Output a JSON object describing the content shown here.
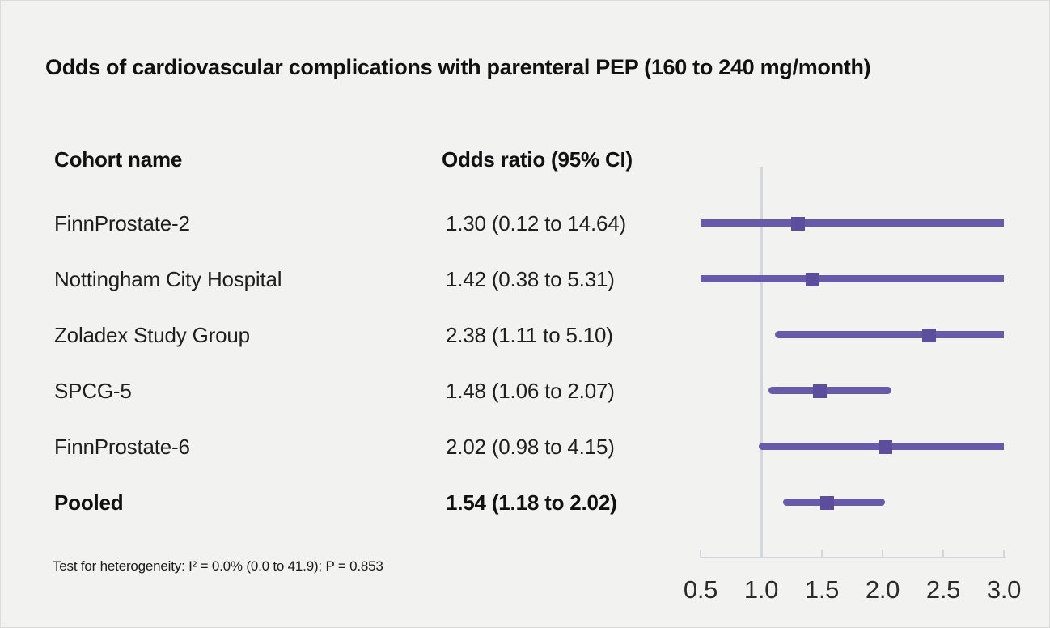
{
  "title": "Odds of cardiovascular complications with parenteral PEP (160 to 240 mg/month)",
  "table": {
    "cohort_header": "Cohort name",
    "or_header": "Odds ratio (95% CI)",
    "rows": [
      {
        "label": "FinnProstate-2",
        "or_text": "1.30 (0.12 to 14.64)",
        "bold": false
      },
      {
        "label": "Nottingham City Hospital",
        "or_text": "1.42 (0.38 to 5.31)",
        "bold": false
      },
      {
        "label": "Zoladex Study Group",
        "or_text": "2.38 (1.11 to 5.10)",
        "bold": false
      },
      {
        "label": "SPCG-5",
        "or_text": "1.48 (1.06 to 2.07)",
        "bold": false
      },
      {
        "label": "FinnProstate-6",
        "or_text": "2.02 (0.98 to 4.15)",
        "bold": false
      },
      {
        "label": "Pooled",
        "or_text": "1.54 (1.18 to 2.02)",
        "bold": true
      }
    ]
  },
  "footnote": "Test for heterogeneity: I² = 0.0% (0.0 to 41.9); P = 0.853",
  "axis": {
    "tick_labels": [
      "0.5",
      "1.0",
      "1.5",
      "2.0",
      "2.5",
      "3.0"
    ]
  },
  "colors": {
    "background": "#f2f2f1",
    "bar": "#675AA8",
    "marker": "#5C4E9D",
    "axis": "#d3d6dc",
    "text": "#1a1a1a"
  },
  "chart_data": {
    "type": "forest",
    "title": "Odds of cardiovascular complications with parenteral PEP (160 to 240 mg/month)",
    "effect_measure": "Odds ratio (95% CI)",
    "studies": [
      {
        "name": "FinnProstate-2",
        "estimate": 1.3,
        "ci_low": 0.12,
        "ci_high": 14.64,
        "pooled": false
      },
      {
        "name": "Nottingham City Hospital",
        "estimate": 1.42,
        "ci_low": 0.38,
        "ci_high": 5.31,
        "pooled": false
      },
      {
        "name": "Zoladex Study Group",
        "estimate": 2.38,
        "ci_low": 1.11,
        "ci_high": 5.1,
        "pooled": false
      },
      {
        "name": "SPCG-5",
        "estimate": 1.48,
        "ci_low": 1.06,
        "ci_high": 2.07,
        "pooled": false
      },
      {
        "name": "FinnProstate-6",
        "estimate": 2.02,
        "ci_low": 0.98,
        "ci_high": 4.15,
        "pooled": false
      },
      {
        "name": "Pooled",
        "estimate": 1.54,
        "ci_low": 1.18,
        "ci_high": 2.02,
        "pooled": true
      }
    ],
    "x_axis": {
      "min": 0.5,
      "max": 3.0,
      "ticks": [
        0.5,
        1.0,
        1.5,
        2.0,
        2.5,
        3.0
      ],
      "reference_line": 1.0,
      "clipped_to_range": true
    },
    "heterogeneity": {
      "I2_percent": 0.0,
      "I2_ci": [
        0.0,
        41.9
      ],
      "P": 0.853
    }
  }
}
